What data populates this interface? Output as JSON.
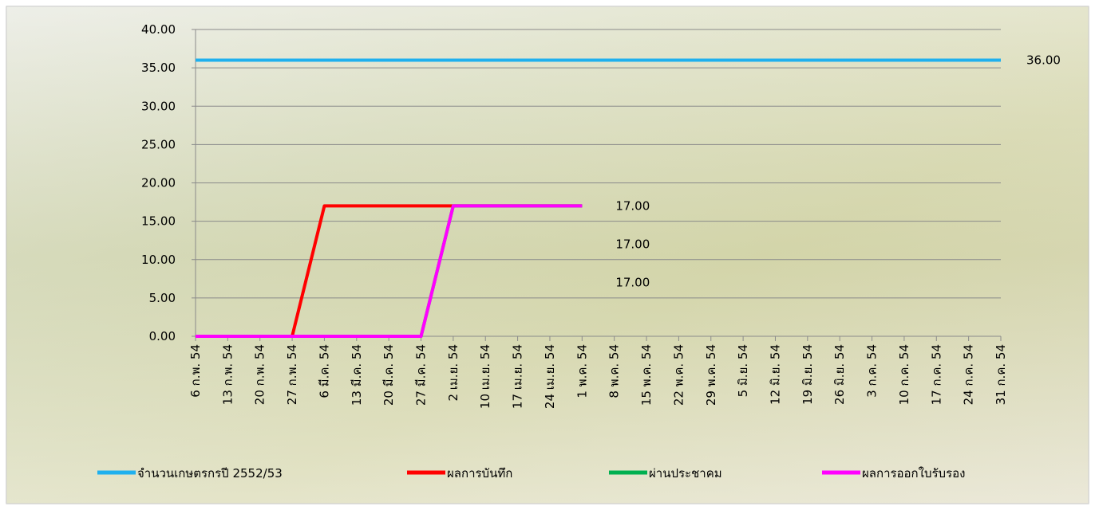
{
  "chart_data": {
    "type": "line",
    "categories": [
      "6 ก.พ. 54",
      "13 ก.พ. 54",
      "20 ก.พ. 54",
      "27 ก.พ. 54",
      "6 มี.ค. 54",
      "13 มี.ค. 54",
      "20 มี.ค. 54",
      "27 มี.ค. 54",
      "2 เม.ย. 54",
      "10 เม.ย. 54",
      "17 เม.ย. 54",
      "24 เม.ย. 54",
      "1 พ.ค. 54",
      "8 พ.ค. 54",
      "15 พ.ค. 54",
      "22 พ.ค. 54",
      "29 พ.ค. 54",
      "5 มิ.ย. 54",
      "12 มิ.ย. 54",
      "19 มิ.ย. 54",
      "26 มิ.ย. 54",
      "3 ก.ค. 54",
      "10 ก.ค. 54",
      "17 ก.ค. 54",
      "24 ก.ค. 54",
      "31 ก.ค. 54"
    ],
    "series": [
      {
        "name": "จำนวนเกษตรกรปี  2552/53",
        "color": "#1fb0ee",
        "values": [
          36,
          36,
          36,
          36,
          36,
          36,
          36,
          36,
          36,
          36,
          36,
          36,
          36,
          36,
          36,
          36,
          36,
          36,
          36,
          36,
          36,
          36,
          36,
          36,
          36,
          36
        ],
        "value_labels": [
          null,
          null,
          null,
          null,
          null,
          null,
          null,
          null,
          null,
          null,
          null,
          null,
          null,
          null,
          null,
          null,
          null,
          null,
          null,
          null,
          null,
          null,
          null,
          null,
          null,
          "36.00"
        ]
      },
      {
        "name": "ผลการบันทึก",
        "color": "#ff0000",
        "values": [
          0,
          0,
          0,
          0,
          17,
          17,
          17,
          17,
          17,
          17,
          17,
          17,
          17,
          null,
          null,
          null,
          null,
          null,
          null,
          null,
          null,
          null,
          null,
          null,
          null,
          null
        ],
        "value_labels": [
          null,
          null,
          null,
          null,
          null,
          null,
          null,
          null,
          null,
          null,
          null,
          null,
          "17.00",
          null,
          null,
          null,
          null,
          null,
          null,
          null,
          null,
          null,
          null,
          null,
          null,
          null
        ]
      },
      {
        "name": "ผ่านประชาคม",
        "color": "#00b050",
        "values": [
          0,
          0,
          0,
          0,
          0,
          0,
          0,
          0,
          17,
          17,
          17,
          17,
          17,
          null,
          null,
          null,
          null,
          null,
          null,
          null,
          null,
          null,
          null,
          null,
          null,
          null
        ],
        "value_labels": [
          null,
          null,
          null,
          null,
          null,
          null,
          null,
          null,
          null,
          null,
          null,
          null,
          "17.00",
          null,
          null,
          null,
          null,
          null,
          null,
          null,
          null,
          null,
          null,
          null,
          null,
          null
        ]
      },
      {
        "name": "ผลการออกใบรับรอง",
        "color": "#ff00ff",
        "values": [
          0,
          0,
          0,
          0,
          0,
          0,
          0,
          0,
          17,
          17,
          17,
          17,
          17,
          null,
          null,
          null,
          null,
          null,
          null,
          null,
          null,
          null,
          null,
          null,
          null,
          null
        ],
        "value_labels": [
          null,
          null,
          null,
          null,
          null,
          null,
          null,
          null,
          null,
          null,
          null,
          null,
          "17.00",
          null,
          null,
          null,
          null,
          null,
          null,
          null,
          null,
          null,
          null,
          null,
          null,
          null
        ]
      }
    ],
    "ylim": [
      0,
      40
    ],
    "yticks": [
      {
        "value": 0,
        "label": "0.00"
      },
      {
        "value": 5,
        "label": "5.00"
      },
      {
        "value": 10,
        "label": "10.00"
      },
      {
        "value": 15,
        "label": "15.00"
      },
      {
        "value": 20,
        "label": "20.00"
      },
      {
        "value": 25,
        "label": "25.00"
      },
      {
        "value": 30,
        "label": "30.00"
      },
      {
        "value": 35,
        "label": "35.00"
      },
      {
        "value": 40,
        "label": "40.00"
      }
    ],
    "grid": true,
    "legend": "bottom"
  }
}
